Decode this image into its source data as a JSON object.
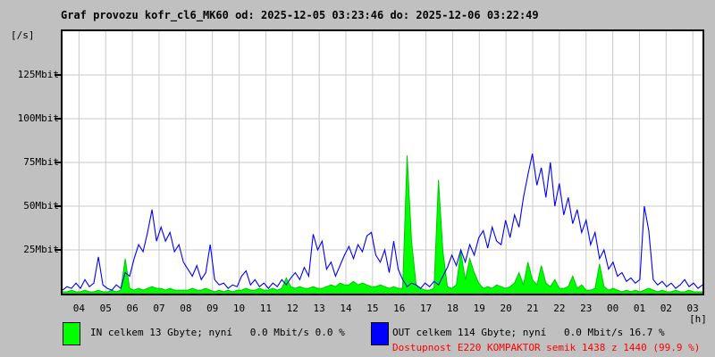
{
  "title": "Graf provozu kofr_cl6_MK60 od: 2025-12-05 03:23:46 do: 2025-12-06 03:22:49",
  "colors": {
    "background": "#c0c0c0",
    "plot_background": "#ffffff",
    "grid": "#c9c9c9",
    "border": "#000000",
    "in_series": "#00ff00",
    "out_series": "#0000ff",
    "availability_text": "#ff0000",
    "title_text": "#000000"
  },
  "legend": {
    "in": {
      "color": "#00ff00",
      "label": "IN celkem 13 Gbyte; nyní   0.0 Mbit/s 0.0 %"
    },
    "out": {
      "color": "#0000ff",
      "label": "OUT celkem 114 Gbyte; nyní   0.0 Mbit/s 16.7 %"
    },
    "availability": {
      "color": "#ff0000",
      "text": "Dostupnost E220 KOMPAKTOR semik 1438 z 1440 (99.9 %)"
    }
  },
  "chart_data": {
    "type": "line",
    "title": "Graf provozu kofr_cl6_MK60",
    "time_from": "2025-12-05 03:23:46",
    "time_to": "2025-12-06 03:22:49",
    "y_axis_unit": "[/s]",
    "x_axis_unit": "[h]",
    "ylim": [
      0,
      150
    ],
    "grid": true,
    "legend_position": "bottom",
    "y_tick_values": [
      25,
      50,
      75,
      100,
      125
    ],
    "y_tick_labels": [
      "25Mbit",
      "50Mbit",
      "75Mbit",
      "100Mbit",
      "125Mbit"
    ],
    "x_tick_labels": [
      "04",
      "05",
      "06",
      "07",
      "08",
      "09",
      "10",
      "11",
      "12",
      "13",
      "14",
      "15",
      "16",
      "17",
      "18",
      "19",
      "20",
      "21",
      "22",
      "23",
      "00",
      "01",
      "02",
      "03"
    ],
    "sample_interval_minutes": 10,
    "series": [
      {
        "name": "IN",
        "unit": "Mbit/s",
        "style": "area",
        "color": "#00ff00",
        "edge_color": "#00c800",
        "values": [
          1,
          1,
          2,
          1,
          1,
          2,
          1,
          1,
          2,
          1,
          1,
          2,
          1,
          2,
          20,
          3,
          2,
          3,
          2,
          3,
          4,
          3,
          3,
          2,
          3,
          2,
          2,
          2,
          2,
          3,
          2,
          2,
          3,
          2,
          1,
          2,
          1,
          2,
          1,
          2,
          2,
          3,
          2,
          2,
          3,
          2,
          2,
          3,
          2,
          3,
          9,
          4,
          3,
          4,
          3,
          3,
          4,
          3,
          3,
          4,
          5,
          4,
          6,
          5,
          5,
          7,
          5,
          6,
          5,
          4,
          4,
          5,
          4,
          3,
          4,
          3,
          3,
          79,
          30,
          5,
          3,
          2,
          2,
          3,
          65,
          24,
          4,
          3,
          5,
          24,
          8,
          20,
          12,
          6,
          3,
          4,
          3,
          5,
          4,
          3,
          4,
          6,
          12,
          5,
          18,
          8,
          5,
          16,
          6,
          4,
          8,
          3,
          3,
          4,
          10,
          3,
          5,
          2,
          2,
          3,
          17,
          4,
          2,
          3,
          2,
          1,
          2,
          1,
          2,
          1,
          2,
          3,
          2,
          1,
          2,
          1,
          1,
          2,
          1,
          1,
          2,
          1,
          1,
          1
        ]
      },
      {
        "name": "OUT",
        "unit": "Mbit/s",
        "style": "line",
        "color": "#0000ff",
        "values": [
          2,
          4,
          3,
          6,
          3,
          8,
          4,
          6,
          21,
          5,
          3,
          2,
          5,
          3,
          12,
          10,
          20,
          28,
          24,
          35,
          48,
          30,
          38,
          30,
          35,
          24,
          28,
          18,
          14,
          10,
          16,
          8,
          12,
          28,
          8,
          5,
          6,
          3,
          5,
          4,
          10,
          13,
          5,
          8,
          4,
          6,
          3,
          6,
          4,
          8,
          5,
          9,
          12,
          8,
          15,
          10,
          34,
          25,
          30,
          14,
          18,
          10,
          16,
          22,
          27,
          20,
          28,
          24,
          33,
          35,
          22,
          18,
          25,
          12,
          30,
          14,
          8,
          4,
          6,
          5,
          3,
          6,
          4,
          7,
          5,
          10,
          15,
          22,
          16,
          25,
          18,
          28,
          22,
          32,
          36,
          26,
          38,
          30,
          28,
          42,
          32,
          45,
          38,
          55,
          68,
          80,
          62,
          72,
          55,
          75,
          50,
          63,
          45,
          55,
          40,
          48,
          35,
          42,
          28,
          35,
          20,
          25,
          14,
          18,
          10,
          12,
          7,
          9,
          6,
          8,
          50,
          36,
          8,
          5,
          7,
          4,
          6,
          3,
          5,
          8,
          4,
          6,
          3,
          5
        ]
      }
    ]
  }
}
